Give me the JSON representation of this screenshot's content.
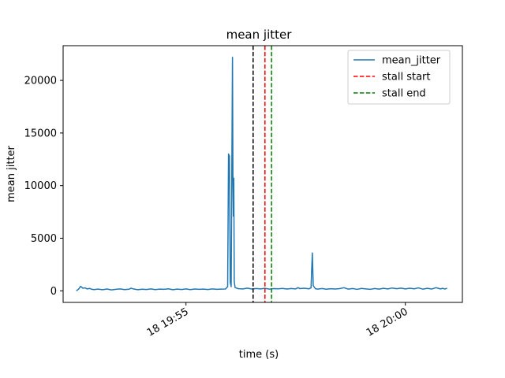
{
  "chart_data": {
    "type": "line",
    "title": "mean jitter",
    "xlabel": "time (s)",
    "ylabel": "mean jitter",
    "x_range_minutes": [
      -2.5,
      2.3
    ],
    "xlim": [
      -2.8,
      2.5
    ],
    "ylim": [
      -1100,
      23300
    ],
    "y_ticks": [
      0,
      5000,
      10000,
      15000,
      20000
    ],
    "y_tick_labels": [
      "0",
      "5000",
      "10000",
      "15000",
      "20000"
    ],
    "x_tick_positions_minutes": [
      -2.5,
      2.5
    ],
    "x_tick_labels": [
      "18 19:55",
      "18 20:00"
    ],
    "grid": false,
    "legend_position": "upper right",
    "series": [
      {
        "name": "mean_jitter",
        "color": "#1f77b4",
        "style": "solid",
        "points": [
          [
            -5.0,
            0
          ],
          [
            -4.95,
            150
          ],
          [
            -4.9,
            430
          ],
          [
            -4.85,
            250
          ],
          [
            -4.8,
            280
          ],
          [
            -4.75,
            180
          ],
          [
            -4.7,
            230
          ],
          [
            -4.65,
            150
          ],
          [
            -4.6,
            120
          ],
          [
            -4.5,
            160
          ],
          [
            -4.4,
            110
          ],
          [
            -4.3,
            170
          ],
          [
            -4.2,
            90
          ],
          [
            -4.1,
            140
          ],
          [
            -4.0,
            180
          ],
          [
            -3.9,
            120
          ],
          [
            -3.8,
            150
          ],
          [
            -3.75,
            250
          ],
          [
            -3.7,
            180
          ],
          [
            -3.6,
            110
          ],
          [
            -3.5,
            150
          ],
          [
            -3.4,
            130
          ],
          [
            -3.3,
            180
          ],
          [
            -3.2,
            120
          ],
          [
            -3.1,
            160
          ],
          [
            -3.0,
            140
          ],
          [
            -2.9,
            190
          ],
          [
            -2.8,
            110
          ],
          [
            -2.7,
            160
          ],
          [
            -2.6,
            130
          ],
          [
            -2.5,
            180
          ],
          [
            -2.4,
            120
          ],
          [
            -2.3,
            170
          ],
          [
            -2.2,
            140
          ],
          [
            -2.1,
            160
          ],
          [
            -2.0,
            130
          ],
          [
            -1.9,
            180
          ],
          [
            -1.8,
            140
          ],
          [
            -1.7,
            160
          ],
          [
            -1.6,
            170
          ],
          [
            -1.55,
            400
          ],
          [
            -1.53,
            13000
          ],
          [
            -1.51,
            12800
          ],
          [
            -1.49,
            800
          ],
          [
            -1.47,
            400
          ],
          [
            -1.44,
            22200
          ],
          [
            -1.43,
            10900
          ],
          [
            -1.42,
            7100
          ],
          [
            -1.41,
            10700
          ],
          [
            -1.4,
            900
          ],
          [
            -1.38,
            300
          ],
          [
            -1.3,
            200
          ],
          [
            -1.2,
            180
          ],
          [
            -1.1,
            260
          ],
          [
            -1.0,
            170
          ],
          [
            -0.9,
            220
          ],
          [
            -0.8,
            180
          ],
          [
            -0.7,
            240
          ],
          [
            -0.6,
            160
          ],
          [
            -0.5,
            210
          ],
          [
            -0.4,
            190
          ],
          [
            -0.3,
            230
          ],
          [
            -0.2,
            170
          ],
          [
            -0.1,
            220
          ],
          [
            0.0,
            180
          ],
          [
            0.05,
            300
          ],
          [
            0.1,
            210
          ],
          [
            0.2,
            250
          ],
          [
            0.3,
            190
          ],
          [
            0.35,
            280
          ],
          [
            0.38,
            3600
          ],
          [
            0.4,
            500
          ],
          [
            0.45,
            200
          ],
          [
            0.5,
            160
          ],
          [
            0.6,
            220
          ],
          [
            0.7,
            150
          ],
          [
            0.8,
            200
          ],
          [
            0.9,
            170
          ],
          [
            1.0,
            210
          ],
          [
            1.1,
            300
          ],
          [
            1.2,
            160
          ],
          [
            1.3,
            220
          ],
          [
            1.4,
            140
          ],
          [
            1.5,
            230
          ],
          [
            1.6,
            180
          ],
          [
            1.7,
            140
          ],
          [
            1.8,
            220
          ],
          [
            1.9,
            160
          ],
          [
            2.0,
            240
          ],
          [
            2.1,
            180
          ],
          [
            2.2,
            270
          ],
          [
            2.3,
            200
          ],
          [
            2.4,
            260
          ],
          [
            2.5,
            180
          ],
          [
            2.6,
            250
          ],
          [
            2.7,
            190
          ],
          [
            2.8,
            280
          ],
          [
            2.9,
            160
          ],
          [
            3.0,
            240
          ],
          [
            3.1,
            170
          ],
          [
            3.2,
            300
          ],
          [
            3.3,
            180
          ],
          [
            3.35,
            240
          ],
          [
            3.4,
            170
          ],
          [
            3.45,
            250
          ]
        ]
      }
    ],
    "vertical_lines": [
      {
        "x_minutes": -0.97,
        "color": "#000000",
        "style": "dashed"
      },
      {
        "name": "stall start",
        "x_minutes": -0.7,
        "color": "#ff0000",
        "style": "dashed"
      },
      {
        "name": "stall end",
        "x_minutes": -0.55,
        "color": "#008000",
        "style": "dashed"
      }
    ]
  }
}
